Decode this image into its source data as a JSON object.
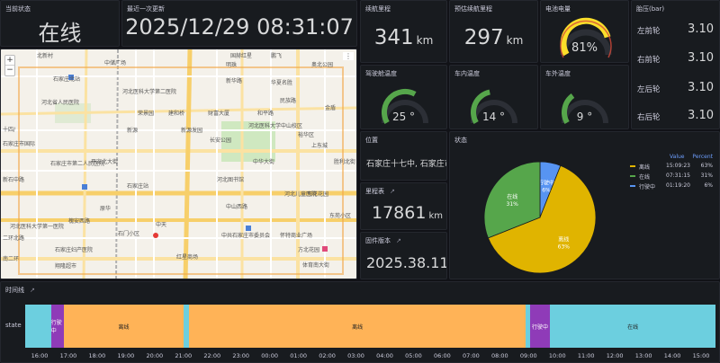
{
  "status": {
    "title": "当前状态",
    "value": "在线"
  },
  "last_update": {
    "title": "最近一次更新",
    "value": "2025/12/29 08:31:07"
  },
  "range": {
    "title": "续航里程",
    "value": "341",
    "unit": "km"
  },
  "est_range": {
    "title": "预估续航里程",
    "value": "297",
    "unit": "km"
  },
  "battery": {
    "title": "电池电量",
    "value": "81%",
    "percent": 81,
    "color": "#fade2a"
  },
  "tire": {
    "title": "胎压(bar)",
    "rows": [
      {
        "label": "左前轮",
        "value": "3.10"
      },
      {
        "label": "右前轮",
        "value": "3.10"
      },
      {
        "label": "左后轮",
        "value": "3.10"
      },
      {
        "label": "右后轮",
        "value": "3.10"
      }
    ]
  },
  "driver_temp": {
    "title": "驾驶舱温度",
    "value": "25 °",
    "level": 0.62
  },
  "inside_temp": {
    "title": "车内温度",
    "value": "14 °",
    "level": 0.45
  },
  "outside_temp": {
    "title": "车外温度",
    "value": "9 °",
    "level": 0.35
  },
  "map": {
    "zoom_in": "+",
    "zoom_out": "−",
    "labels": [
      "北新村",
      "中储广场",
      "国赫红星",
      "鹏飞",
      "奥北公园",
      "石家庄北站",
      "河北医科大学第二医院",
      "新华路",
      "民族路",
      "华夏名胜",
      "河北省人民医院",
      "荣景园",
      "建和桥",
      "财富大厦",
      "和平路",
      "河北医科大学中山校区",
      "金盾",
      "新源",
      "新源发园",
      "裕华区",
      "长安公园",
      "上东城",
      "石家庄市第二人民医院",
      "十四/",
      "石家庄市国际",
      "石家庄站",
      "河北图书馆",
      "河北儿童医院",
      "槐安西路",
      "中山西路",
      "东花花园",
      "原华",
      "中天",
      "东苑小区",
      "石门小区",
      "中共石家庄市委员会",
      "怀特商业广场",
      "方北花园",
      "河北医科大学第一医院",
      "石家庄妇产医院",
      "红星商场",
      "翔隆超市",
      "二环北路",
      "新石中路",
      "明珠",
      "胜利北街",
      "平安北大街",
      "中华大街",
      "体育南大街",
      "南二环"
    ]
  },
  "location": {
    "title": "位置",
    "value": "石家庄十七中, 石家庄市"
  },
  "odometer": {
    "title": "里程表",
    "value": "17861",
    "unit": "km"
  },
  "firmware": {
    "title": "固件版本",
    "value": "2025.38.11"
  },
  "state_pie": {
    "title": "状态"
  },
  "timeline": {
    "title": "时间线",
    "row_label": "state",
    "segments": [
      {
        "label": "",
        "state": "online"
      },
      {
        "label": "行驶中",
        "state": "driving"
      },
      {
        "label": "离线",
        "state": "offline"
      },
      {
        "label": "",
        "state": "online"
      },
      {
        "label": "离线",
        "state": "offline"
      },
      {
        "label": "",
        "state": "online"
      },
      {
        "label": "行驶中",
        "state": "driving"
      },
      {
        "label": "在线",
        "state": "online"
      }
    ],
    "ticks": [
      "16:00",
      "17:00",
      "18:00",
      "19:00",
      "20:00",
      "21:00",
      "22:00",
      "23:00",
      "00:00",
      "01:00",
      "02:00",
      "03:00",
      "04:00",
      "05:00",
      "06:00",
      "07:00",
      "08:00",
      "09:00",
      "10:00",
      "11:00",
      "12:00",
      "13:00",
      "14:00",
      "15:00"
    ],
    "colors": {
      "online": "#6ccfdf",
      "offline": "#ffb357",
      "driving": "#8f3bb8"
    }
  },
  "chart_data": {
    "type": "pie",
    "title": "状态",
    "legend_headers": [
      "Value",
      "Percent"
    ],
    "slices": [
      {
        "name": "离线",
        "value": "15:09:23",
        "percent": 63,
        "label": "63%",
        "color": "#e0b400"
      },
      {
        "name": "在线",
        "value": "07:31:15",
        "percent": 31,
        "label": "31%",
        "color": "#56a64b"
      },
      {
        "name": "行驶中",
        "value": "01:19:20",
        "percent": 6,
        "label": "6%",
        "color": "#5794f2"
      }
    ],
    "legend_placement": "top-right"
  }
}
